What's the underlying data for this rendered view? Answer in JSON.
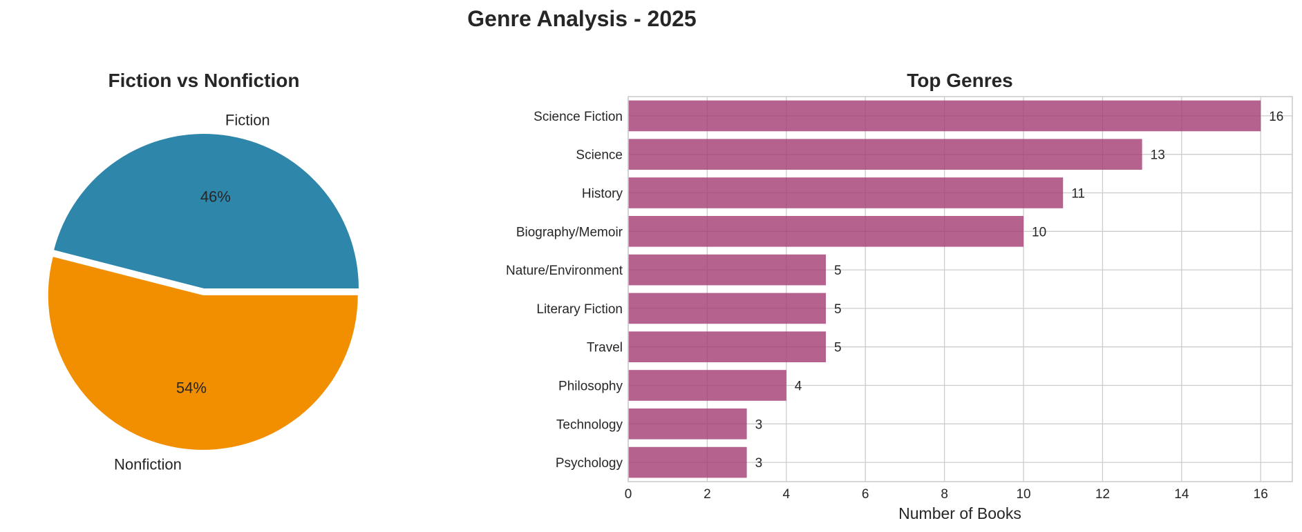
{
  "figure_title": "Genre Analysis - 2025",
  "chart_data": [
    {
      "type": "pie",
      "title": "Fiction vs Nonfiction",
      "slices": [
        {
          "label": "Fiction",
          "value": 46,
          "pct_label": "46%",
          "color": "#2e86ab",
          "explode": false
        },
        {
          "label": "Nonfiction",
          "value": 54,
          "pct_label": "54%",
          "color": "#f18f01",
          "explode": true
        }
      ]
    },
    {
      "type": "bar",
      "orientation": "horizontal",
      "title": "Top Genres",
      "xlabel": "Number of Books",
      "ylabel": "",
      "xlim": [
        0,
        16.8
      ],
      "xticks": [
        0,
        2,
        4,
        6,
        8,
        10,
        12,
        14,
        16
      ],
      "grid": true,
      "bar_color": "#a23b72",
      "categories": [
        "Science Fiction",
        "Science",
        "History",
        "Biography/Memoir",
        "Nature/Environment",
        "Literary Fiction",
        "Travel",
        "Philosophy",
        "Technology",
        "Psychology"
      ],
      "values": [
        16,
        13,
        11,
        10,
        5,
        5,
        5,
        4,
        3,
        3
      ]
    }
  ]
}
